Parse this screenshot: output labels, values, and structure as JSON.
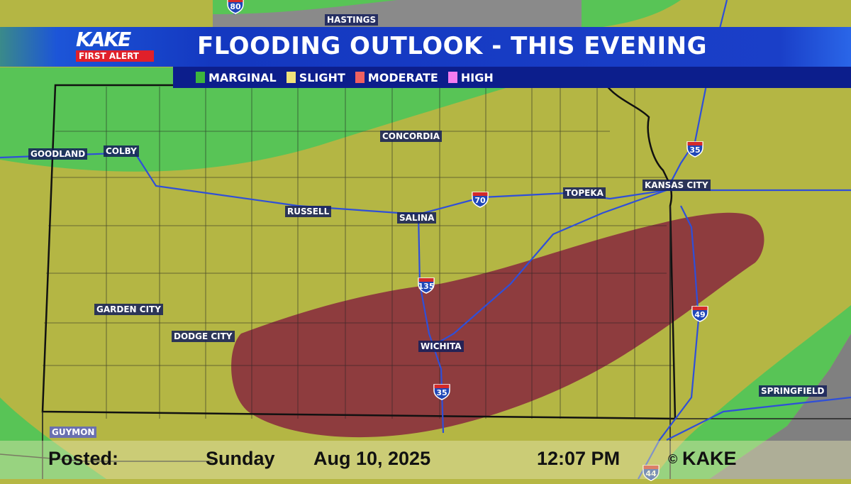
{
  "header": {
    "logo_text": "KAKE",
    "logo_subtext": "FIRST ALERT",
    "title": "FLOODING OUTLOOK - THIS EVENING"
  },
  "legend": [
    {
      "label": "MARGINAL",
      "color": "#3db53d"
    },
    {
      "label": "SLIGHT",
      "color": "#f0e27a"
    },
    {
      "label": "MODERATE",
      "color": "#f06060"
    },
    {
      "label": "HIGH",
      "color": "#f47cf0"
    }
  ],
  "map_colors": {
    "marginal": "#58c456",
    "slight": "#b4b644",
    "moderate": "#8e3c3e",
    "background": "#8a8a8a",
    "interstates": "#2f4fd8"
  },
  "cities": {
    "hastings": "HASTINGS",
    "goodland": "GOODLAND",
    "colby": "COLBY",
    "concordia": "CONCORDIA",
    "russell": "RUSSELL",
    "salina": "SALINA",
    "topeka": "TOPEKA",
    "kansas_city": "KANSAS CITY",
    "garden_city": "GARDEN CITY",
    "dodge_city": "DODGE CITY",
    "wichita": "WICHITA",
    "springfield": "SPRINGFIELD",
    "guymon": "GUYMON"
  },
  "interstates": {
    "i80": "80",
    "i35_north": "35",
    "i70": "70",
    "i135": "135",
    "i49": "49",
    "i35_south": "35",
    "i44": "44"
  },
  "footer": {
    "posted_label": "Posted:",
    "day": "Sunday",
    "date": "Aug 10, 2025",
    "time": "12:07 PM",
    "copyright_symbol": "©",
    "copyright": "KAKE"
  }
}
